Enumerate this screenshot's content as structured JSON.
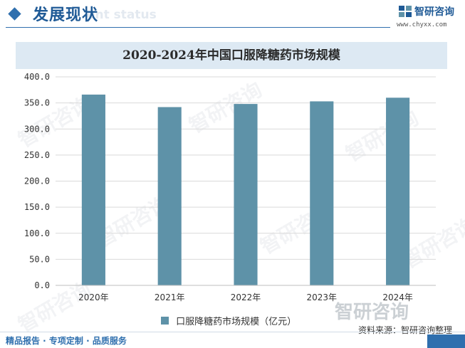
{
  "header": {
    "title": "发展现状",
    "subtitle_fragment": "ent status",
    "brand_name": "智研咨询",
    "brand_url": "www.chyxx.com"
  },
  "chart_data": {
    "type": "bar",
    "title": "2020-2024年中国口服降糖药市场规模",
    "categories": [
      "2020年",
      "2021年",
      "2022年",
      "2023年",
      "2024年"
    ],
    "series": [
      {
        "name": "口服降糖药市场规模（亿元）",
        "values": [
          366,
          342,
          348,
          353,
          360
        ]
      }
    ],
    "ylim": [
      0,
      400
    ],
    "yticks": [
      "0.0",
      "50.0",
      "100.0",
      "150.0",
      "200.0",
      "250.0",
      "300.0",
      "350.0",
      "400.0"
    ],
    "grid": true,
    "legend": "bottom",
    "bar_color": "#5e92a8"
  },
  "watermark": {
    "brand": "智研咨询"
  },
  "footer": {
    "source_label": "资料来源：",
    "source_value": "智研咨询整理",
    "services": "精品报告 · 专项定制 · 品质服务"
  }
}
